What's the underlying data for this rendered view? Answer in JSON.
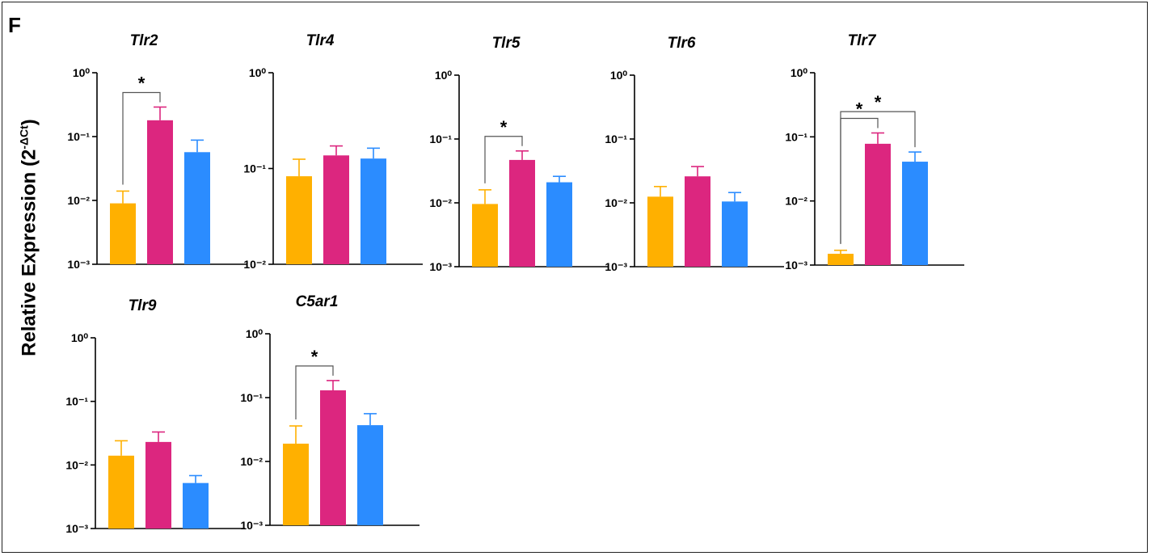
{
  "panel_label": "F",
  "ylabel": {
    "main": "Relative Expression (2",
    "sup": "-ΔCt",
    "close": ")"
  },
  "colors": {
    "group1": "#FFB000",
    "group2": "#DC267F",
    "group3": "#2B8CFF"
  },
  "chart_data": [
    {
      "type": "bar",
      "title": "Tlr2",
      "yscale": "log",
      "ylim": [
        0.001,
        1
      ],
      "yticks": [
        "10⁰",
        "10⁻¹",
        "10⁻²",
        "10⁻³"
      ],
      "values": [
        0.009,
        0.18,
        0.057
      ],
      "errors": [
        0.014,
        0.29,
        0.088
      ],
      "significance": [
        {
          "from": 0,
          "to": 1,
          "label": "*"
        }
      ]
    },
    {
      "type": "bar",
      "title": "Tlr4",
      "yscale": "log",
      "ylim": [
        0.01,
        1
      ],
      "yticks": [
        "10⁰",
        "10⁻¹",
        "10⁻²"
      ],
      "values": [
        0.083,
        0.137,
        0.127
      ],
      "errors": [
        0.125,
        0.172,
        0.163
      ],
      "significance": []
    },
    {
      "type": "bar",
      "title": "Tlr5",
      "yscale": "log",
      "ylim": [
        0.001,
        1
      ],
      "yticks": [
        "10⁰",
        "10⁻¹",
        "10⁻²",
        "10⁻³"
      ],
      "values": [
        0.0096,
        0.047,
        0.021
      ],
      "errors": [
        0.016,
        0.065,
        0.026
      ],
      "significance": [
        {
          "from": 0,
          "to": 1,
          "label": "*"
        }
      ]
    },
    {
      "type": "bar",
      "title": "Tlr6",
      "yscale": "log",
      "ylim": [
        0.001,
        1
      ],
      "yticks": [
        "10⁰",
        "10⁻¹",
        "10⁻²",
        "10⁻³"
      ],
      "values": [
        0.0125,
        0.026,
        0.0105
      ],
      "errors": [
        0.018,
        0.037,
        0.0145
      ],
      "significance": []
    },
    {
      "type": "bar",
      "title": "Tlr7",
      "yscale": "log",
      "ylim": [
        0.001,
        1
      ],
      "yticks": [
        "10⁰",
        "10⁻¹",
        "10⁻²",
        "10⁻³"
      ],
      "values": [
        0.0015,
        0.078,
        0.041
      ],
      "errors": [
        0.0017,
        0.115,
        0.058
      ],
      "significance": [
        {
          "from": 0,
          "to": 1,
          "label": "*"
        },
        {
          "from": 0,
          "to": 2,
          "label": "*"
        }
      ]
    },
    {
      "type": "bar",
      "title": "Tlr9",
      "yscale": "log",
      "ylim": [
        0.001,
        1
      ],
      "yticks": [
        "10⁰",
        "10⁻¹",
        "10⁻²",
        "10⁻³"
      ],
      "values": [
        0.014,
        0.023,
        0.0052
      ],
      "errors": [
        0.024,
        0.033,
        0.0068
      ],
      "significance": []
    },
    {
      "type": "bar",
      "title": "C5ar1",
      "yscale": "log",
      "ylim": [
        0.001,
        1
      ],
      "yticks": [
        "10⁰",
        "10⁻¹",
        "10⁻²",
        "10⁻³"
      ],
      "values": [
        0.019,
        0.13,
        0.037
      ],
      "errors": [
        0.036,
        0.185,
        0.056
      ],
      "significance": [
        {
          "from": 0,
          "to": 1,
          "label": "*"
        }
      ]
    }
  ]
}
